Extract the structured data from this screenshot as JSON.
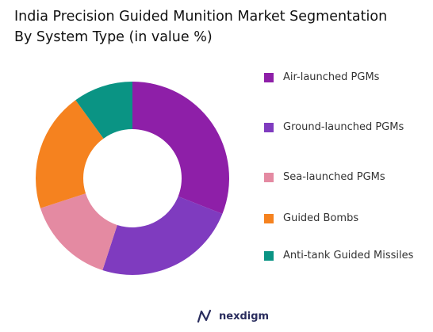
{
  "chart_data": {
    "type": "pie",
    "title_line1": "India Precision Guided Munition Market Segmentation",
    "title_line2": "By System Type (in value %)",
    "categories": [
      "Air-launched PGMs",
      "Ground-launched PGMs",
      "Sea-launched PGMs",
      "Guided Bombs",
      "Anti-tank Guided Missiles"
    ],
    "values": [
      31,
      24,
      15,
      20,
      10
    ],
    "colors": [
      "#8e1fa8",
      "#7f3bbf",
      "#e48aa2",
      "#f5821f",
      "#0a9484"
    ],
    "legend_position": "right"
  },
  "brand": {
    "name": "nexdigm",
    "logo_icon": "nexdigm-logo-icon"
  }
}
